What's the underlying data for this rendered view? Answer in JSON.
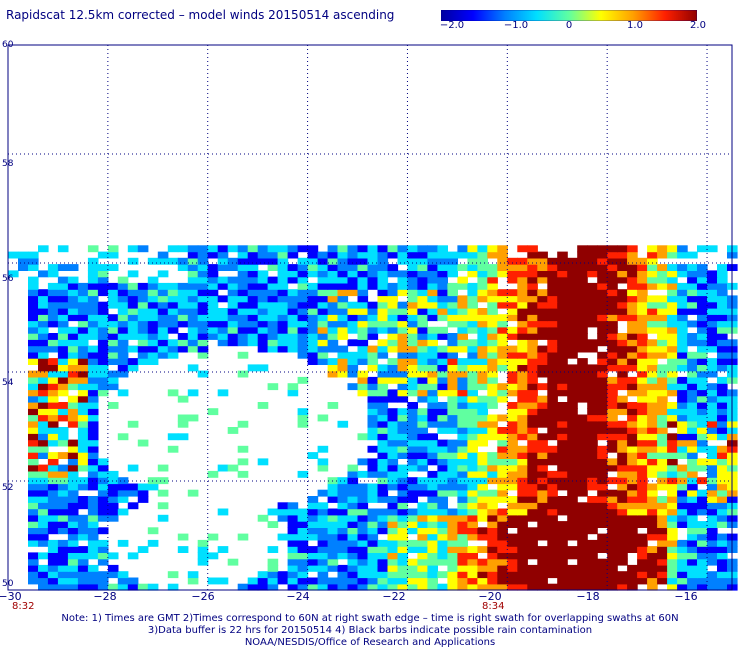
{
  "title": "Rapidscat 12.5km corrected – model winds 20150514 ascending",
  "colorbar": {
    "ticks": [
      "−2.0",
      "−1.0",
      "0",
      "1.0",
      "2.0"
    ],
    "range": [
      -2.0,
      2.0
    ],
    "colors": [
      "#0000a0",
      "#0000ff",
      "#0080ff",
      "#00e0ff",
      "#60ffa0",
      "#ffff00",
      "#ffa000",
      "#ff2000",
      "#900000"
    ]
  },
  "axes": {
    "lat_labels": [
      "60",
      "58",
      "56",
      "54",
      "52",
      "50"
    ],
    "lon_labels": [
      "−30",
      "−28",
      "−26",
      "−24",
      "−22",
      "−20",
      "−18",
      "−16"
    ],
    "lon_range": [
      -30,
      -15.5
    ],
    "lat_range": [
      50,
      60
    ]
  },
  "times": {
    "left": "8:32",
    "right": "8:34"
  },
  "notes": [
    "Note: 1) Times are GMT 2)Times correspond to 60N at right swath edge – time is right swath for overlapping swaths at 60N",
    "3)Data buffer is 22 hrs for 20150514 4) Black barbs indicate possible rain contamination",
    "NOAA/NESDIS/Office of Research and Applications"
  ]
}
